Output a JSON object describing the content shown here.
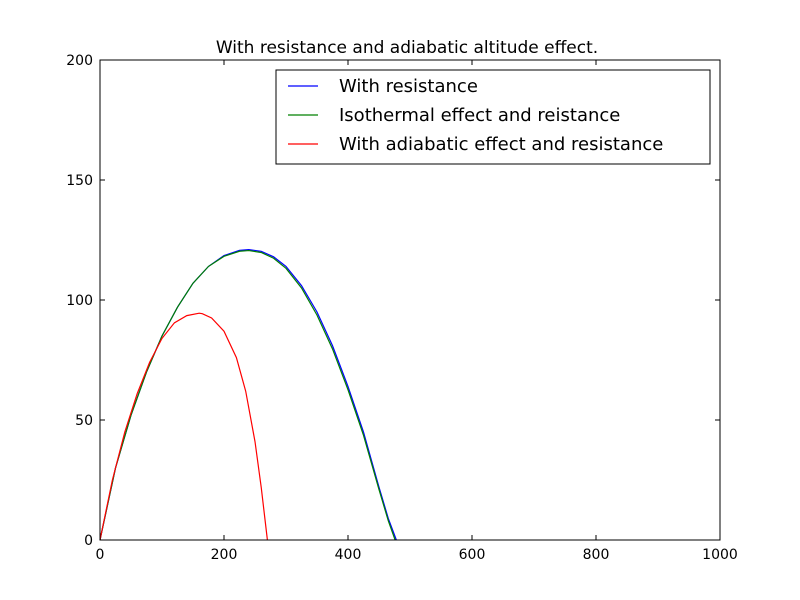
{
  "chart_data": {
    "type": "line",
    "title": "With resistance and adiabatic altitude effect.",
    "xlabel": "",
    "ylabel": "",
    "xlim": [
      0,
      1000
    ],
    "ylim": [
      0,
      200
    ],
    "xticks": [
      0,
      200,
      400,
      600,
      800,
      1000
    ],
    "yticks": [
      0,
      50,
      100,
      150,
      200
    ],
    "grid": false,
    "legend": "top-right",
    "series": [
      {
        "name": "With resistance",
        "color": "#0000ff",
        "x": [
          0,
          25,
          50,
          75,
          100,
          125,
          150,
          175,
          200,
          225,
          240,
          260,
          280,
          300,
          325,
          350,
          375,
          400,
          425,
          450,
          465,
          478
        ],
        "y": [
          0,
          30,
          52,
          70,
          85,
          97,
          107,
          114,
          118.5,
          120.7,
          121,
          120.3,
          118,
          114,
          106,
          95,
          81,
          64,
          45,
          22,
          9,
          0
        ]
      },
      {
        "name": "Isothermal effect and reistance",
        "color": "#008000",
        "x": [
          0,
          25,
          50,
          75,
          100,
          125,
          150,
          175,
          200,
          225,
          240,
          260,
          280,
          300,
          325,
          350,
          375,
          400,
          425,
          450,
          465,
          476
        ],
        "y": [
          0,
          30,
          52,
          70,
          85,
          97,
          107,
          114,
          118.2,
          120.3,
          120.6,
          119.8,
          117.4,
          113.2,
          105,
          93.7,
          79.6,
          62.6,
          43.6,
          21,
          8,
          0
        ]
      },
      {
        "name": "With adiabatic effect and resistance",
        "color": "#ff0000",
        "x": [
          0,
          20,
          40,
          60,
          80,
          100,
          120,
          140,
          160,
          165,
          180,
          200,
          220,
          235,
          250,
          260,
          270
        ],
        "y": [
          0,
          25,
          45,
          61,
          74,
          84,
          90.5,
          93.5,
          94.5,
          94.3,
          92.5,
          87,
          76,
          62,
          41,
          22,
          0
        ]
      }
    ]
  }
}
